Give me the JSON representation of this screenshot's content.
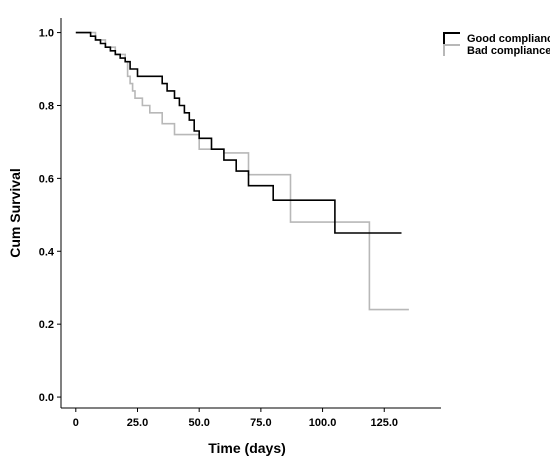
{
  "chart_data": {
    "type": "line",
    "title": "",
    "xlabel": "Time (days)",
    "ylabel": "Cum Survival",
    "xlim": [
      -6,
      148
    ],
    "ylim": [
      -0.03,
      1.04
    ],
    "xticks": [
      0,
      25,
      50,
      75,
      100,
      125
    ],
    "xtick_labels": [
      "0",
      "25.0",
      "50.0",
      "75.0",
      "100.0",
      "125.0"
    ],
    "yticks": [
      0.0,
      0.2,
      0.4,
      0.6,
      0.8,
      1.0
    ],
    "ytick_labels": [
      "0.0",
      "0.2",
      "0.4",
      "0.6",
      "0.8",
      "1.0"
    ],
    "grid": false,
    "legend_position": "top-right",
    "series": [
      {
        "name": "Good compliance",
        "color": "#000000",
        "step": true,
        "x": [
          0,
          6,
          8,
          10,
          12,
          14,
          16,
          18,
          20,
          22,
          25,
          35,
          37,
          40,
          42,
          44,
          46,
          48,
          50,
          55,
          60,
          65,
          70,
          80,
          105,
          132
        ],
        "y": [
          1.0,
          0.99,
          0.98,
          0.97,
          0.96,
          0.95,
          0.94,
          0.93,
          0.92,
          0.9,
          0.88,
          0.86,
          0.84,
          0.82,
          0.8,
          0.78,
          0.76,
          0.73,
          0.71,
          0.68,
          0.65,
          0.62,
          0.58,
          0.54,
          0.45,
          0.45
        ]
      },
      {
        "name": "Bad compliance",
        "color": "#b8b8b8",
        "step": true,
        "x": [
          0,
          8,
          12,
          16,
          20,
          21,
          22,
          23,
          24,
          27,
          30,
          35,
          40,
          50,
          60,
          70,
          87,
          119,
          135
        ],
        "y": [
          1.0,
          0.98,
          0.96,
          0.94,
          0.92,
          0.88,
          0.86,
          0.84,
          0.82,
          0.8,
          0.78,
          0.75,
          0.72,
          0.68,
          0.67,
          0.61,
          0.48,
          0.24,
          0.24
        ]
      }
    ]
  }
}
